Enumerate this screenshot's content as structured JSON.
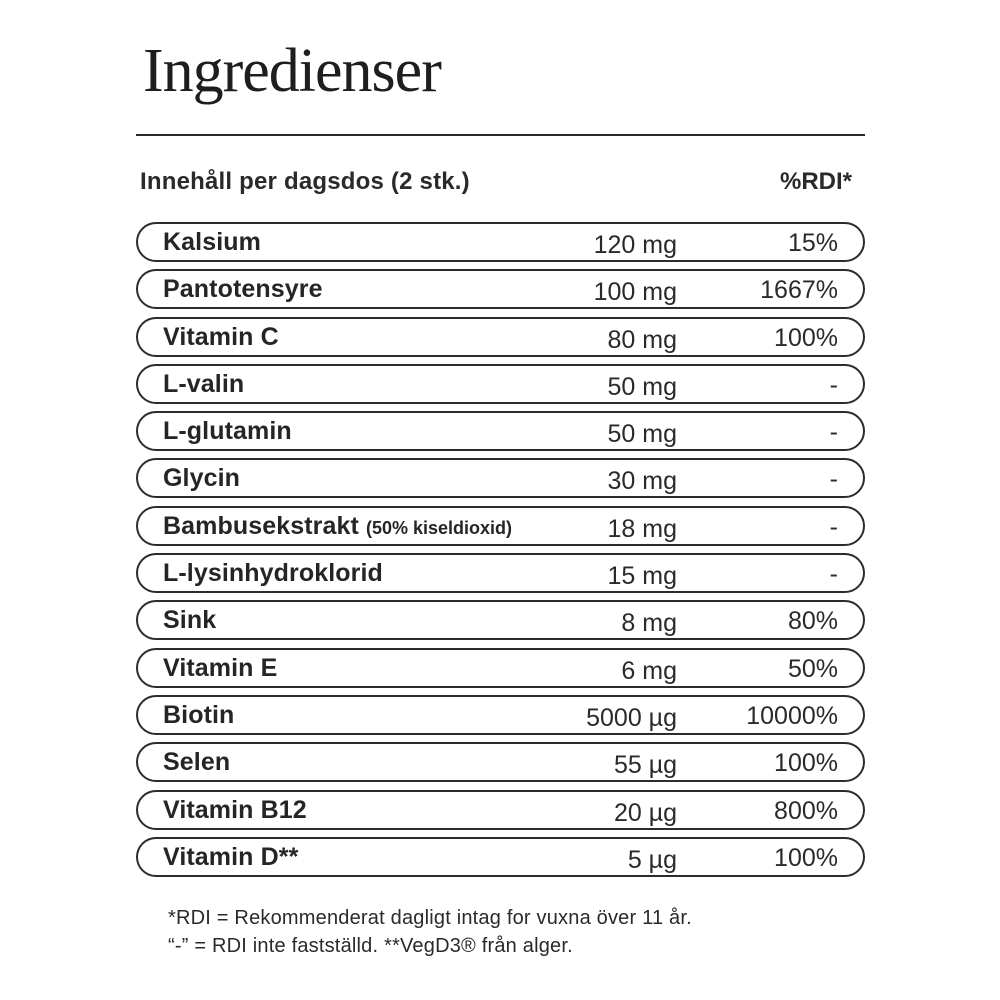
{
  "title": "Ingredienser",
  "header": {
    "left": "Innehåll per dagsdos (2 stk.)",
    "right": "%RDI*"
  },
  "rows": [
    {
      "name": "Kalsium",
      "note": "",
      "amount": "120 mg",
      "rdi": "15%"
    },
    {
      "name": "Pantotensyre",
      "note": "",
      "amount": "100 mg",
      "rdi": "1667%"
    },
    {
      "name": "Vitamin C",
      "note": "",
      "amount": "80 mg",
      "rdi": "100%"
    },
    {
      "name": "L-valin",
      "note": "",
      "amount": "50 mg",
      "rdi": "-"
    },
    {
      "name": "L-glutamin",
      "note": "",
      "amount": "50 mg",
      "rdi": "-"
    },
    {
      "name": "Glycin",
      "note": "",
      "amount": "30 mg",
      "rdi": "-"
    },
    {
      "name": "Bambusekstrakt",
      "note": "(50% kiseldioxid)",
      "amount": "18 mg",
      "rdi": "-"
    },
    {
      "name": "L-lysinhydroklorid",
      "note": "",
      "amount": "15 mg",
      "rdi": "-"
    },
    {
      "name": "Sink",
      "note": "",
      "amount": "8 mg",
      "rdi": "80%"
    },
    {
      "name": "Vitamin E",
      "note": "",
      "amount": "6 mg",
      "rdi": "50%"
    },
    {
      "name": "Biotin",
      "note": "",
      "amount": "5000 µg",
      "rdi": "10000%"
    },
    {
      "name": "Selen",
      "note": "",
      "amount": "55 µg",
      "rdi": "100%"
    },
    {
      "name": "Vitamin B12",
      "note": "",
      "amount": "20 µg",
      "rdi": "800%"
    },
    {
      "name": "Vitamin D**",
      "note": "",
      "amount": "5 µg",
      "rdi": "100%"
    }
  ],
  "footnotes": [
    "*RDI = Rekommenderat dagligt intag for vuxna över 11 år.",
    "“-” = RDI inte fastställd. **VegD3® från alger."
  ]
}
